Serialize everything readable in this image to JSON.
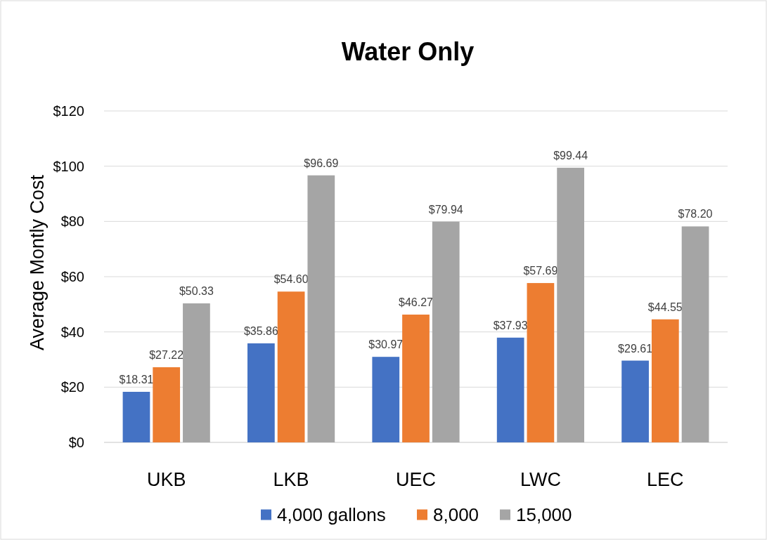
{
  "chart_data": {
    "type": "bar",
    "title": "Water Only",
    "ylabel": "Average Montly Cost",
    "categories": [
      "UKB",
      "LKB",
      "UEC",
      "LWC",
      "LEC"
    ],
    "series": [
      {
        "name": "4,000 gallons",
        "color": "#4472c4",
        "values": [
          18.31,
          35.86,
          30.97,
          37.93,
          29.61
        ],
        "value_labels": [
          "$18.31",
          "$35.86",
          "$30.97",
          "$37.93",
          "$29.61"
        ]
      },
      {
        "name": "8,000",
        "color": "#ed7d31",
        "values": [
          27.22,
          54.6,
          46.27,
          57.69,
          44.55
        ],
        "value_labels": [
          "$27.22",
          "$54.60",
          "$46.27",
          "$57.69",
          "$44.55"
        ]
      },
      {
        "name": "15,000",
        "color": "#a5a5a5",
        "values": [
          50.33,
          96.69,
          79.94,
          99.44,
          78.2
        ],
        "value_labels": [
          "$50.33",
          "$96.69",
          "$79.94",
          "$99.44",
          "$78.20"
        ]
      }
    ],
    "ylim": [
      0,
      120
    ],
    "yticks": [
      {
        "value": 0,
        "label": "$0"
      },
      {
        "value": 20,
        "label": "$20"
      },
      {
        "value": 40,
        "label": "$40"
      },
      {
        "value": 60,
        "label": "$60"
      },
      {
        "value": 80,
        "label": "$80"
      },
      {
        "value": 100,
        "label": "$100"
      },
      {
        "value": 120,
        "label": "$120"
      }
    ],
    "grid": "y",
    "legend": "bottom"
  }
}
